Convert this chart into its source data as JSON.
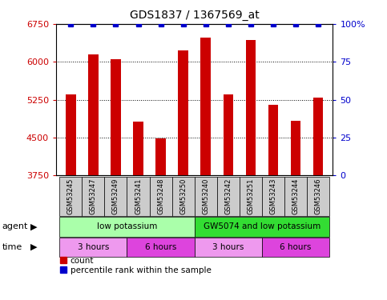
{
  "title": "GDS1837 / 1367569_at",
  "samples": [
    "GSM53245",
    "GSM53247",
    "GSM53249",
    "GSM53241",
    "GSM53248",
    "GSM53250",
    "GSM53240",
    "GSM53242",
    "GSM53251",
    "GSM53243",
    "GSM53244",
    "GSM53246"
  ],
  "counts": [
    5350,
    6150,
    6060,
    4820,
    4480,
    6230,
    6480,
    5360,
    6430,
    5150,
    4830,
    5290
  ],
  "ylim_left": [
    3750,
    6750
  ],
  "yticks_left": [
    3750,
    4500,
    5250,
    6000,
    6750
  ],
  "ylim_right": [
    0,
    100
  ],
  "yticks_right": [
    0,
    25,
    50,
    75,
    100
  ],
  "bar_color": "#cc0000",
  "dot_color": "#0000cc",
  "bar_width": 0.45,
  "agent_groups": [
    {
      "label": "low potassium",
      "start": 0,
      "end": 6,
      "color": "#aaffaa"
    },
    {
      "label": "GW5074 and low potassium",
      "start": 6,
      "end": 12,
      "color": "#33dd33"
    }
  ],
  "time_groups": [
    {
      "label": "3 hours",
      "start": 0,
      "end": 3,
      "color": "#ee99ee"
    },
    {
      "label": "6 hours",
      "start": 3,
      "end": 6,
      "color": "#dd44dd"
    },
    {
      "label": "3 hours",
      "start": 6,
      "end": 9,
      "color": "#ee99ee"
    },
    {
      "label": "6 hours",
      "start": 9,
      "end": 12,
      "color": "#dd44dd"
    }
  ],
  "sample_box_color": "#cccccc",
  "legend_count_label": "count",
  "legend_pct_label": "percentile rank within the sample",
  "agent_label": "agent",
  "time_label": "time",
  "axis_color_left": "#cc0000",
  "axis_color_right": "#0000cc",
  "fig_width": 4.83,
  "fig_height": 3.75,
  "dpi": 100
}
